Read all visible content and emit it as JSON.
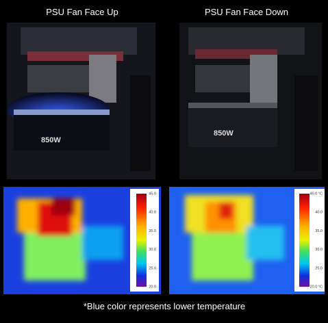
{
  "panels": [
    {
      "title": "PSU Fan Face Up",
      "psu_label": "850W",
      "scale_labels": [
        "45.0",
        "40.0",
        "35.0",
        "30.0",
        "25.0",
        "20.0"
      ]
    },
    {
      "title": "PSU Fan Face Down",
      "psu_label": "850W",
      "scale_labels": [
        "45.0 °C",
        "40.0",
        "35.0",
        "30.0",
        "25.0",
        "20.0 °C"
      ]
    }
  ],
  "footnote": "*Blue color represents lower temperature"
}
